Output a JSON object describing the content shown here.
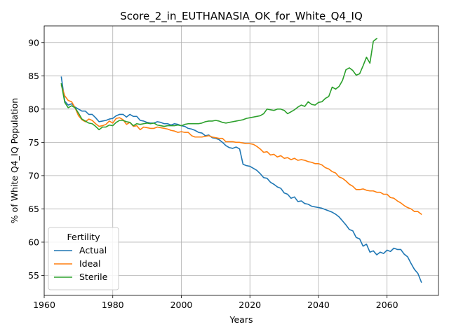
{
  "chart_data": {
    "type": "line",
    "title": "Score_2_in_EUTHANASIA_OK_for_White_Q4_IQ",
    "xlabel": "Years",
    "ylabel": "% of White Q4_IQ Population",
    "xlim": [
      1960,
      2075
    ],
    "ylim": [
      52.0,
      92.5
    ],
    "xticks": [
      1960,
      1980,
      2000,
      2020,
      2040,
      2060
    ],
    "yticks": [
      55,
      60,
      65,
      70,
      75,
      80,
      85,
      90
    ],
    "grid": true,
    "legend": {
      "title": "Fertility",
      "placement": "lower-left"
    },
    "series": [
      {
        "name": "Actual",
        "color": "#1f77b4",
        "points": [
          [
            1965,
            84.8
          ],
          [
            1966,
            81.2
          ],
          [
            1967,
            80.6
          ],
          [
            1968,
            80.8
          ],
          [
            1969,
            80.3
          ],
          [
            1970,
            80.0
          ],
          [
            1971,
            79.7
          ],
          [
            1972,
            79.7
          ],
          [
            1973,
            79.2
          ],
          [
            1974,
            79.2
          ],
          [
            1975,
            78.7
          ],
          [
            1976,
            78.1
          ],
          [
            1977,
            78.2
          ],
          [
            1978,
            78.3
          ],
          [
            1979,
            78.5
          ],
          [
            1980,
            78.6
          ],
          [
            1981,
            79.0
          ],
          [
            1982,
            79.2
          ],
          [
            1983,
            79.2
          ],
          [
            1984,
            78.8
          ],
          [
            1985,
            79.2
          ],
          [
            1986,
            78.9
          ],
          [
            1987,
            78.9
          ],
          [
            1988,
            78.3
          ],
          [
            1989,
            78.2
          ],
          [
            1990,
            78.0
          ],
          [
            1991,
            77.9
          ],
          [
            1992,
            77.9
          ],
          [
            1993,
            78.1
          ],
          [
            1994,
            78.0
          ],
          [
            1995,
            77.8
          ],
          [
            1996,
            77.8
          ],
          [
            1997,
            77.6
          ],
          [
            1998,
            77.8
          ],
          [
            1999,
            77.7
          ],
          [
            2000,
            77.5
          ],
          [
            2001,
            77.4
          ],
          [
            2002,
            77.1
          ],
          [
            2003,
            77.0
          ],
          [
            2004,
            76.8
          ],
          [
            2005,
            76.5
          ],
          [
            2006,
            76.4
          ],
          [
            2007,
            76.0
          ],
          [
            2008,
            76.1
          ],
          [
            2009,
            75.7
          ],
          [
            2010,
            75.6
          ],
          [
            2011,
            75.4
          ],
          [
            2012,
            75.0
          ],
          [
            2013,
            74.5
          ],
          [
            2014,
            74.2
          ],
          [
            2015,
            74.1
          ],
          [
            2016,
            74.3
          ],
          [
            2017,
            74.0
          ],
          [
            2018,
            71.7
          ],
          [
            2019,
            71.5
          ],
          [
            2020,
            71.4
          ],
          [
            2021,
            71.1
          ],
          [
            2022,
            70.8
          ],
          [
            2023,
            70.3
          ],
          [
            2024,
            69.7
          ],
          [
            2025,
            69.6
          ],
          [
            2026,
            69.0
          ],
          [
            2027,
            68.7
          ],
          [
            2028,
            68.3
          ],
          [
            2029,
            68.1
          ],
          [
            2030,
            67.4
          ],
          [
            2031,
            67.2
          ],
          [
            2032,
            66.6
          ],
          [
            2033,
            66.8
          ],
          [
            2034,
            66.1
          ],
          [
            2035,
            66.2
          ],
          [
            2036,
            65.8
          ],
          [
            2037,
            65.7
          ],
          [
            2038,
            65.4
          ],
          [
            2039,
            65.3
          ],
          [
            2040,
            65.2
          ],
          [
            2041,
            65.1
          ],
          [
            2042,
            64.9
          ],
          [
            2043,
            64.7
          ],
          [
            2044,
            64.5
          ],
          [
            2045,
            64.2
          ],
          [
            2046,
            63.8
          ],
          [
            2047,
            63.2
          ],
          [
            2048,
            62.6
          ],
          [
            2049,
            61.9
          ],
          [
            2050,
            61.7
          ],
          [
            2051,
            60.7
          ],
          [
            2052,
            60.5
          ],
          [
            2053,
            59.4
          ],
          [
            2054,
            59.7
          ],
          [
            2055,
            58.5
          ],
          [
            2056,
            58.7
          ],
          [
            2057,
            58.1
          ],
          [
            2058,
            58.5
          ],
          [
            2059,
            58.3
          ],
          [
            2060,
            58.8
          ],
          [
            2061,
            58.6
          ],
          [
            2062,
            59.1
          ],
          [
            2063,
            58.9
          ],
          [
            2064,
            58.9
          ],
          [
            2065,
            58.2
          ],
          [
            2066,
            57.8
          ],
          [
            2067,
            56.8
          ],
          [
            2068,
            55.9
          ],
          [
            2069,
            55.3
          ],
          [
            2070,
            54.0
          ]
        ]
      },
      {
        "name": "Ideal",
        "color": "#ff7f0e",
        "points": [
          [
            1965,
            83.6
          ],
          [
            1966,
            82.0
          ],
          [
            1967,
            81.3
          ],
          [
            1968,
            81.1
          ],
          [
            1969,
            80.2
          ],
          [
            1970,
            79.0
          ],
          [
            1971,
            78.4
          ],
          [
            1972,
            78.1
          ],
          [
            1973,
            78.5
          ],
          [
            1974,
            78.3
          ],
          [
            1975,
            77.8
          ],
          [
            1976,
            77.4
          ],
          [
            1977,
            77.5
          ],
          [
            1978,
            77.7
          ],
          [
            1979,
            78.2
          ],
          [
            1980,
            77.9
          ],
          [
            1981,
            78.6
          ],
          [
            1982,
            78.7
          ],
          [
            1983,
            78.4
          ],
          [
            1984,
            77.7
          ],
          [
            1985,
            78.0
          ],
          [
            1986,
            77.4
          ],
          [
            1987,
            77.5
          ],
          [
            1988,
            76.9
          ],
          [
            1989,
            77.3
          ],
          [
            1990,
            77.2
          ],
          [
            1991,
            77.1
          ],
          [
            1992,
            77.1
          ],
          [
            1993,
            77.3
          ],
          [
            1994,
            77.2
          ],
          [
            1995,
            77.1
          ],
          [
            1996,
            77.0
          ],
          [
            1997,
            76.8
          ],
          [
            1998,
            76.7
          ],
          [
            1999,
            76.5
          ],
          [
            2000,
            76.6
          ],
          [
            2001,
            76.5
          ],
          [
            2002,
            76.5
          ],
          [
            2003,
            76.0
          ],
          [
            2004,
            75.8
          ],
          [
            2005,
            75.8
          ],
          [
            2006,
            75.8
          ],
          [
            2007,
            75.9
          ],
          [
            2008,
            76.0
          ],
          [
            2009,
            75.8
          ],
          [
            2010,
            75.7
          ],
          [
            2011,
            75.6
          ],
          [
            2012,
            75.6
          ],
          [
            2013,
            75.1
          ],
          [
            2014,
            75.1
          ],
          [
            2015,
            75.1
          ],
          [
            2016,
            75.0
          ],
          [
            2017,
            75.0
          ],
          [
            2018,
            74.9
          ],
          [
            2019,
            74.8
          ],
          [
            2020,
            74.8
          ],
          [
            2021,
            74.7
          ],
          [
            2022,
            74.4
          ],
          [
            2023,
            74.0
          ],
          [
            2024,
            73.5
          ],
          [
            2025,
            73.6
          ],
          [
            2026,
            73.1
          ],
          [
            2027,
            73.2
          ],
          [
            2028,
            72.8
          ],
          [
            2029,
            73.0
          ],
          [
            2030,
            72.6
          ],
          [
            2031,
            72.7
          ],
          [
            2032,
            72.4
          ],
          [
            2033,
            72.6
          ],
          [
            2034,
            72.3
          ],
          [
            2035,
            72.4
          ],
          [
            2036,
            72.3
          ],
          [
            2037,
            72.1
          ],
          [
            2038,
            72.0
          ],
          [
            2039,
            71.8
          ],
          [
            2040,
            71.8
          ],
          [
            2041,
            71.6
          ],
          [
            2042,
            71.2
          ],
          [
            2043,
            71.0
          ],
          [
            2044,
            70.6
          ],
          [
            2045,
            70.4
          ],
          [
            2046,
            69.8
          ],
          [
            2047,
            69.6
          ],
          [
            2048,
            69.2
          ],
          [
            2049,
            68.7
          ],
          [
            2050,
            68.4
          ],
          [
            2051,
            67.9
          ],
          [
            2052,
            67.9
          ],
          [
            2053,
            68.0
          ],
          [
            2054,
            67.8
          ],
          [
            2055,
            67.7
          ],
          [
            2056,
            67.7
          ],
          [
            2057,
            67.5
          ],
          [
            2058,
            67.5
          ],
          [
            2059,
            67.2
          ],
          [
            2060,
            67.2
          ],
          [
            2061,
            66.7
          ],
          [
            2062,
            66.6
          ],
          [
            2063,
            66.2
          ],
          [
            2064,
            65.9
          ],
          [
            2065,
            65.5
          ],
          [
            2066,
            65.2
          ],
          [
            2067,
            65.0
          ],
          [
            2068,
            64.6
          ],
          [
            2069,
            64.6
          ],
          [
            2070,
            64.2
          ]
        ]
      },
      {
        "name": "Sterile",
        "color": "#2ca02c",
        "points": [
          [
            1965,
            83.8
          ],
          [
            1966,
            81.0
          ],
          [
            1967,
            80.2
          ],
          [
            1968,
            80.5
          ],
          [
            1969,
            80.2
          ],
          [
            1970,
            79.4
          ],
          [
            1971,
            78.5
          ],
          [
            1972,
            78.2
          ],
          [
            1973,
            77.9
          ],
          [
            1974,
            77.8
          ],
          [
            1975,
            77.4
          ],
          [
            1976,
            76.9
          ],
          [
            1977,
            77.3
          ],
          [
            1978,
            77.3
          ],
          [
            1979,
            77.6
          ],
          [
            1980,
            77.5
          ],
          [
            1981,
            78.0
          ],
          [
            1982,
            78.3
          ],
          [
            1983,
            78.3
          ],
          [
            1984,
            78.1
          ],
          [
            1985,
            78.0
          ],
          [
            1986,
            77.5
          ],
          [
            1987,
            77.8
          ],
          [
            1988,
            77.7
          ],
          [
            1989,
            77.8
          ],
          [
            1990,
            77.9
          ],
          [
            1991,
            77.8
          ],
          [
            1992,
            77.9
          ],
          [
            1993,
            77.6
          ],
          [
            1994,
            77.5
          ],
          [
            1995,
            77.4
          ],
          [
            1996,
            77.5
          ],
          [
            1997,
            77.5
          ],
          [
            1998,
            77.5
          ],
          [
            1999,
            77.6
          ],
          [
            2000,
            77.5
          ],
          [
            2001,
            77.7
          ],
          [
            2002,
            77.8
          ],
          [
            2003,
            77.8
          ],
          [
            2004,
            77.8
          ],
          [
            2005,
            77.8
          ],
          [
            2006,
            77.9
          ],
          [
            2007,
            78.1
          ],
          [
            2008,
            78.2
          ],
          [
            2009,
            78.2
          ],
          [
            2010,
            78.3
          ],
          [
            2011,
            78.2
          ],
          [
            2012,
            78.0
          ],
          [
            2013,
            77.9
          ],
          [
            2014,
            78.0
          ],
          [
            2015,
            78.1
          ],
          [
            2016,
            78.2
          ],
          [
            2017,
            78.3
          ],
          [
            2018,
            78.4
          ],
          [
            2019,
            78.6
          ],
          [
            2020,
            78.7
          ],
          [
            2021,
            78.8
          ],
          [
            2022,
            78.9
          ],
          [
            2023,
            79.0
          ],
          [
            2024,
            79.3
          ],
          [
            2025,
            80.0
          ],
          [
            2026,
            79.9
          ],
          [
            2027,
            79.8
          ],
          [
            2028,
            80.0
          ],
          [
            2029,
            80.0
          ],
          [
            2030,
            79.8
          ],
          [
            2031,
            79.3
          ],
          [
            2032,
            79.6
          ],
          [
            2033,
            79.9
          ],
          [
            2034,
            80.3
          ],
          [
            2035,
            80.6
          ],
          [
            2036,
            80.4
          ],
          [
            2037,
            81.1
          ],
          [
            2038,
            80.7
          ],
          [
            2039,
            80.6
          ],
          [
            2040,
            81.0
          ],
          [
            2041,
            81.1
          ],
          [
            2042,
            81.6
          ],
          [
            2043,
            81.9
          ],
          [
            2044,
            83.3
          ],
          [
            2045,
            83.0
          ],
          [
            2046,
            83.4
          ],
          [
            2047,
            84.3
          ],
          [
            2048,
            85.9
          ],
          [
            2049,
            86.2
          ],
          [
            2050,
            85.8
          ],
          [
            2051,
            85.1
          ],
          [
            2052,
            85.3
          ],
          [
            2053,
            86.5
          ],
          [
            2054,
            87.8
          ],
          [
            2055,
            86.9
          ],
          [
            2056,
            90.2
          ],
          [
            2057,
            90.6
          ]
        ]
      }
    ]
  }
}
